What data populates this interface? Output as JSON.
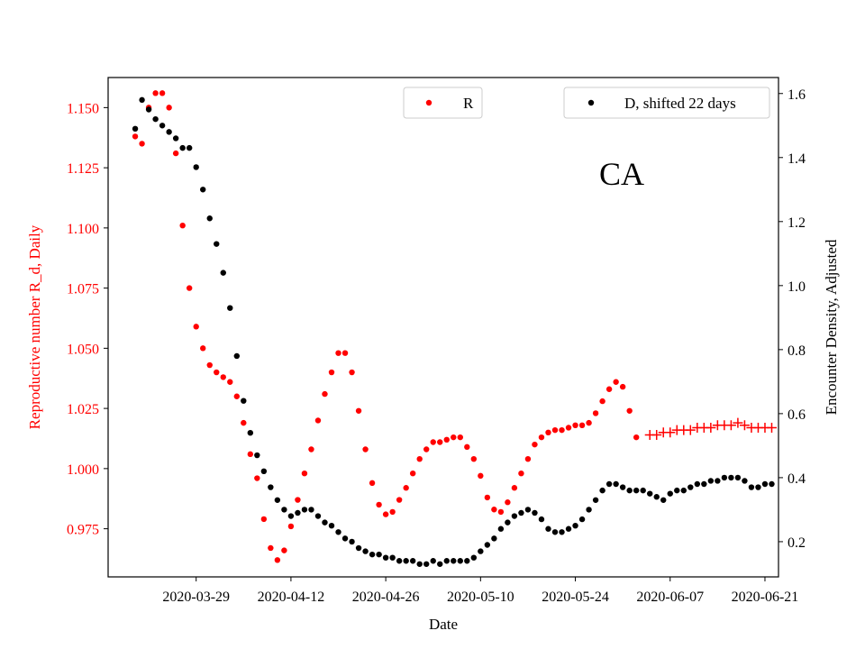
{
  "chart_data": {
    "type": "scatter",
    "panel_label": "CA",
    "xlabel": "Date",
    "ylabel_left": "Reproductive number R_d, Daily",
    "ylabel_right": "Encounter Density, Adjusted",
    "colors": {
      "left_axis": "#ff0000",
      "R": "#ff0000",
      "D": "#000000",
      "projection": "#ff0000"
    },
    "xlim": [
      "2020-03-16",
      "2020-06-23"
    ],
    "ylim_left": [
      0.955,
      1.1625
    ],
    "ylim_right": [
      0.09,
      1.65
    ],
    "x_ticks": [
      "2020-03-29",
      "2020-04-12",
      "2020-04-26",
      "2020-05-10",
      "2020-05-24",
      "2020-06-07",
      "2020-06-21"
    ],
    "y_ticks_left": [
      "0.975",
      "1.000",
      "1.025",
      "1.050",
      "1.075",
      "1.100",
      "1.125",
      "1.150"
    ],
    "y_ticks_right": [
      "0.2",
      "0.4",
      "0.6",
      "0.8",
      "1.0",
      "1.2",
      "1.4",
      "1.6"
    ],
    "legend": [
      {
        "label": "R",
        "marker": "dot",
        "color": "#ff0000",
        "placement": "top-center"
      },
      {
        "label": "D, shifted 22 days",
        "marker": "dot",
        "color": "#000000",
        "placement": "top-right"
      }
    ],
    "grid": false,
    "series": [
      {
        "name": "R",
        "axis": "left",
        "marker": "dot",
        "x": [
          "2020-03-20",
          "2020-03-21",
          "2020-03-22",
          "2020-03-23",
          "2020-03-24",
          "2020-03-25",
          "2020-03-26",
          "2020-03-27",
          "2020-03-28",
          "2020-03-29",
          "2020-03-30",
          "2020-03-31",
          "2020-04-01",
          "2020-04-02",
          "2020-04-03",
          "2020-04-04",
          "2020-04-05",
          "2020-04-06",
          "2020-04-07",
          "2020-04-08",
          "2020-04-09",
          "2020-04-10",
          "2020-04-11",
          "2020-04-12",
          "2020-04-13",
          "2020-04-14",
          "2020-04-15",
          "2020-04-16",
          "2020-04-17",
          "2020-04-18",
          "2020-04-19",
          "2020-04-20",
          "2020-04-21",
          "2020-04-22",
          "2020-04-23",
          "2020-04-24",
          "2020-04-25",
          "2020-04-26",
          "2020-04-27",
          "2020-04-28",
          "2020-04-29",
          "2020-04-30",
          "2020-05-01",
          "2020-05-02",
          "2020-05-03",
          "2020-05-04",
          "2020-05-05",
          "2020-05-06",
          "2020-05-07",
          "2020-05-08",
          "2020-05-09",
          "2020-05-10",
          "2020-05-11",
          "2020-05-12",
          "2020-05-13",
          "2020-05-14",
          "2020-05-15",
          "2020-05-16",
          "2020-05-17",
          "2020-05-18",
          "2020-05-19",
          "2020-05-20",
          "2020-05-21",
          "2020-05-22",
          "2020-05-23",
          "2020-05-24",
          "2020-05-25",
          "2020-05-26",
          "2020-05-27",
          "2020-05-28",
          "2020-05-29",
          "2020-05-30",
          "2020-05-31",
          "2020-06-01",
          "2020-06-02"
        ],
        "values": [
          1.138,
          1.135,
          1.15,
          1.156,
          1.156,
          1.15,
          1.131,
          1.101,
          1.075,
          1.059,
          1.05,
          1.043,
          1.04,
          1.038,
          1.036,
          1.03,
          1.019,
          1.006,
          0.996,
          0.979,
          0.967,
          0.962,
          0.966,
          0.976,
          0.987,
          0.998,
          1.008,
          1.02,
          1.031,
          1.04,
          1.048,
          1.048,
          1.04,
          1.024,
          1.008,
          0.994,
          0.985,
          0.981,
          0.982,
          0.987,
          0.992,
          0.998,
          1.004,
          1.008,
          1.011,
          1.011,
          1.012,
          1.013,
          1.013,
          1.009,
          1.004,
          0.997,
          0.988,
          0.983,
          0.982,
          0.986,
          0.992,
          0.998,
          1.004,
          1.01,
          1.013,
          1.015,
          1.016,
          1.016,
          1.017,
          1.018,
          1.018,
          1.019,
          1.023,
          1.028,
          1.033,
          1.036,
          1.034,
          1.024,
          1.013
        ]
      },
      {
        "name": "R projection",
        "axis": "left",
        "marker": "plus",
        "x": [
          "2020-06-04",
          "2020-06-05",
          "2020-06-06",
          "2020-06-07",
          "2020-06-08",
          "2020-06-09",
          "2020-06-10",
          "2020-06-11",
          "2020-06-12",
          "2020-06-13",
          "2020-06-14",
          "2020-06-15",
          "2020-06-16",
          "2020-06-17",
          "2020-06-18",
          "2020-06-19",
          "2020-06-20",
          "2020-06-21",
          "2020-06-22"
        ],
        "values": [
          1.014,
          1.014,
          1.015,
          1.015,
          1.016,
          1.016,
          1.016,
          1.017,
          1.017,
          1.017,
          1.018,
          1.018,
          1.018,
          1.019,
          1.018,
          1.017,
          1.017,
          1.017,
          1.017
        ]
      },
      {
        "name": "D, shifted 22 days",
        "axis": "right",
        "marker": "dot",
        "x": [
          "2020-03-20",
          "2020-03-21",
          "2020-03-22",
          "2020-03-23",
          "2020-03-24",
          "2020-03-25",
          "2020-03-26",
          "2020-03-27",
          "2020-03-28",
          "2020-03-29",
          "2020-03-30",
          "2020-03-31",
          "2020-04-01",
          "2020-04-02",
          "2020-04-03",
          "2020-04-04",
          "2020-04-05",
          "2020-04-06",
          "2020-04-07",
          "2020-04-08",
          "2020-04-09",
          "2020-04-10",
          "2020-04-11",
          "2020-04-12",
          "2020-04-13",
          "2020-04-14",
          "2020-04-15",
          "2020-04-16",
          "2020-04-17",
          "2020-04-18",
          "2020-04-19",
          "2020-04-20",
          "2020-04-21",
          "2020-04-22",
          "2020-04-23",
          "2020-04-24",
          "2020-04-25",
          "2020-04-26",
          "2020-04-27",
          "2020-04-28",
          "2020-04-29",
          "2020-04-30",
          "2020-05-01",
          "2020-05-02",
          "2020-05-03",
          "2020-05-04",
          "2020-05-05",
          "2020-05-06",
          "2020-05-07",
          "2020-05-08",
          "2020-05-09",
          "2020-05-10",
          "2020-05-11",
          "2020-05-12",
          "2020-05-13",
          "2020-05-14",
          "2020-05-15",
          "2020-05-16",
          "2020-05-17",
          "2020-05-18",
          "2020-05-19",
          "2020-05-20",
          "2020-05-21",
          "2020-05-22",
          "2020-05-23",
          "2020-05-24",
          "2020-05-25",
          "2020-05-26",
          "2020-05-27",
          "2020-05-28",
          "2020-05-29",
          "2020-05-30",
          "2020-05-31",
          "2020-06-01",
          "2020-06-02",
          "2020-06-03",
          "2020-06-04",
          "2020-06-05",
          "2020-06-06",
          "2020-06-07",
          "2020-06-08",
          "2020-06-09",
          "2020-06-10",
          "2020-06-11",
          "2020-06-12",
          "2020-06-13",
          "2020-06-14",
          "2020-06-15",
          "2020-06-16",
          "2020-06-17",
          "2020-06-18",
          "2020-06-19",
          "2020-06-20",
          "2020-06-21",
          "2020-06-22"
        ],
        "values": [
          1.49,
          1.58,
          1.55,
          1.52,
          1.5,
          1.48,
          1.46,
          1.43,
          1.43,
          1.37,
          1.3,
          1.21,
          1.13,
          1.04,
          0.93,
          0.78,
          0.64,
          0.54,
          0.47,
          0.42,
          0.37,
          0.33,
          0.3,
          0.28,
          0.29,
          0.3,
          0.3,
          0.28,
          0.26,
          0.25,
          0.23,
          0.21,
          0.2,
          0.18,
          0.17,
          0.16,
          0.16,
          0.15,
          0.15,
          0.14,
          0.14,
          0.14,
          0.13,
          0.13,
          0.14,
          0.13,
          0.14,
          0.14,
          0.14,
          0.14,
          0.15,
          0.17,
          0.19,
          0.21,
          0.24,
          0.26,
          0.28,
          0.29,
          0.3,
          0.29,
          0.27,
          0.24,
          0.23,
          0.23,
          0.24,
          0.25,
          0.27,
          0.3,
          0.33,
          0.36,
          0.38,
          0.38,
          0.37,
          0.36,
          0.36,
          0.36,
          0.35,
          0.34,
          0.33,
          0.35,
          0.36,
          0.36,
          0.37,
          0.38,
          0.38,
          0.39,
          0.39,
          0.4,
          0.4,
          0.4,
          0.39,
          0.37,
          0.37,
          0.38,
          0.38
        ]
      }
    ]
  }
}
